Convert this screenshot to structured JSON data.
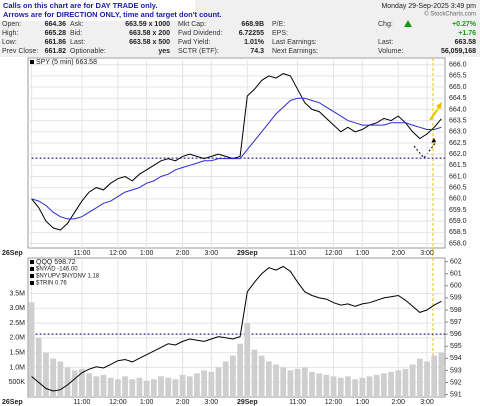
{
  "header": {
    "notice": [
      "Calls on this chart are for DAY TRADE only.",
      "Arrows are for DIRECTION ONLY, time and target don't count."
    ],
    "watermark": "© StockCharts.com",
    "quote": [
      [
        "Open:",
        "664.36",
        "Ask:",
        "663.59 x 1000",
        "Mkt Cap:",
        "668.9B",
        "P/E:"
      ],
      [
        "High:",
        "665.28",
        "Bid:",
        "663.58 x 200",
        "Fwd Dividend:",
        "6.72255",
        "EPS:"
      ],
      [
        "Low:",
        "661.86",
        "Last:",
        "663.58 x 500",
        "Fwd Yield:",
        "1.01%",
        "Last Earnings:"
      ],
      [
        "Prev Close:",
        "661.82",
        "Optionable:",
        "yes",
        "SCTR (ETF):",
        "74.3",
        "Next Earnings:"
      ]
    ],
    "date": "Monday 29-Sep-2025 3:49 pm",
    "chg_label": "Chg:",
    "chg_pct": "+0.27%",
    "chg": "+1.76",
    "last_label": "Last:",
    "last": "663.58",
    "volume_label": "Volume:",
    "volume": "56,059,168"
  },
  "chart_data": [
    {
      "type": "line",
      "categories": [
        "26Sep",
        null,
        null,
        null,
        null,
        null,
        null,
        "11:00",
        null,
        null,
        null,
        null,
        "12:00",
        null,
        null,
        null,
        "1:00",
        null,
        null,
        null,
        null,
        "2:00",
        null,
        null,
        null,
        "3:00",
        null,
        null,
        null,
        null,
        "29Sep",
        null,
        null,
        null,
        null,
        null,
        null,
        "11:00",
        null,
        null,
        null,
        null,
        "12:00",
        null,
        null,
        null,
        "1:00",
        null,
        null,
        null,
        null,
        "2:00",
        null,
        null,
        null,
        "3:00",
        null,
        null
      ],
      "series": [
        {
          "name": "SPY (5 min) 663.58",
          "color": "#000000",
          "values": [
            660.0,
            659.6,
            659.0,
            658.7,
            658.6,
            658.9,
            659.4,
            659.9,
            660.3,
            660.5,
            660.4,
            660.7,
            660.9,
            661.0,
            660.8,
            661.1,
            661.3,
            661.5,
            661.7,
            661.8,
            661.7,
            661.9,
            662.0,
            661.9,
            661.8,
            661.9,
            662.0,
            661.9,
            661.8,
            661.9,
            664.6,
            664.9,
            665.3,
            665.5,
            665.4,
            665.6,
            665.5,
            664.9,
            664.3,
            664.0,
            663.9,
            663.6,
            663.3,
            663.0,
            663.2,
            663.0,
            663.1,
            663.3,
            663.4,
            663.6,
            663.5,
            663.7,
            663.4,
            663.0,
            662.7,
            662.9,
            663.2,
            663.58
          ]
        },
        {
          "color": "#2b2bd0",
          "values": [
            660.0,
            659.9,
            659.7,
            659.4,
            659.2,
            659.1,
            659.1,
            659.2,
            659.4,
            659.6,
            659.8,
            659.9,
            660.1,
            660.3,
            660.4,
            660.5,
            660.7,
            660.8,
            661.0,
            661.1,
            661.3,
            661.4,
            661.5,
            661.6,
            661.7,
            661.7,
            661.8,
            661.8,
            661.8,
            661.8,
            662.2,
            662.6,
            663.0,
            663.4,
            663.8,
            664.1,
            664.4,
            664.5,
            664.5,
            664.4,
            664.3,
            664.1,
            663.9,
            663.7,
            663.5,
            663.4,
            663.3,
            663.3,
            663.3,
            663.3,
            663.4,
            663.4,
            663.4,
            663.3,
            663.2,
            663.1,
            663.1,
            663.2
          ]
        }
      ],
      "ylim": [
        657.8,
        666.3
      ],
      "yticks": [
        {
          "value": 658,
          "label": "658.0"
        },
        658.5,
        {
          "value": 659,
          "label": "659.0"
        },
        659.5,
        {
          "value": 660,
          "label": "660.0"
        },
        660.5,
        {
          "value": 661,
          "label": "661.0"
        },
        661.5,
        {
          "value": 662,
          "label": "662.0"
        },
        662.5,
        {
          "value": 663,
          "label": "663.0"
        },
        663.5,
        {
          "value": 664,
          "label": "664.0"
        },
        664.5,
        {
          "value": 665,
          "label": "665.0"
        },
        665.5,
        {
          "value": 666,
          "label": "666.0"
        }
      ],
      "ytick_side": "right",
      "grid": true,
      "hline": 661.82,
      "hline_color": "#00008b"
    },
    {
      "type": "line",
      "categories": [
        "26Sep",
        null,
        null,
        null,
        null,
        null,
        null,
        "11:00",
        null,
        null,
        null,
        null,
        "12:00",
        null,
        null,
        null,
        "1:00",
        null,
        null,
        null,
        null,
        "2:00",
        null,
        null,
        null,
        "3:00",
        null,
        null,
        null,
        null,
        "29Sep",
        null,
        null,
        null,
        null,
        null,
        null,
        "11:00",
        null,
        null,
        null,
        null,
        "12:00",
        null,
        null,
        null,
        "1:00",
        null,
        null,
        null,
        null,
        "2:00",
        null,
        null,
        null,
        "3:00",
        null,
        null
      ],
      "series": [
        {
          "type": "bar",
          "color": "#cfcfcf",
          "values": [
            3200000,
            2000000,
            1500000,
            1300000,
            1200000,
            1000000,
            900000,
            950000,
            800000,
            700000,
            750000,
            650000,
            600000,
            700000,
            600000,
            650000,
            550000,
            600000,
            700000,
            650000,
            600000,
            750000,
            700000,
            800000,
            900000,
            850000,
            1000000,
            1200000,
            1400000,
            1800000,
            2500000,
            1600000,
            1400000,
            1200000,
            1100000,
            1000000,
            900000,
            950000,
            1000000,
            850000,
            800000,
            750000,
            700000,
            650000,
            700000,
            600000,
            650000,
            700000,
            750000,
            800000,
            850000,
            900000,
            950000,
            1100000,
            1300000,
            1200000,
            1400000,
            1500000
          ]
        },
        {
          "name": "QQQ 598.72",
          "color": "#000000",
          "axis": "y2",
          "values": [
            592.5,
            592.0,
            591.5,
            591.3,
            591.4,
            591.8,
            592.3,
            592.8,
            593.1,
            593.3,
            593.2,
            593.5,
            593.8,
            593.9,
            593.7,
            594.0,
            594.3,
            594.6,
            594.9,
            595.2,
            595.1,
            595.4,
            595.6,
            595.5,
            595.4,
            595.6,
            595.8,
            595.7,
            595.6,
            595.8,
            599.5,
            600.3,
            601.0,
            601.5,
            601.3,
            601.6,
            601.2,
            600.3,
            599.5,
            599.2,
            599.0,
            598.9,
            598.6,
            598.4,
            598.5,
            598.3,
            598.5,
            598.6,
            598.8,
            599.0,
            599.1,
            599.2,
            598.8,
            598.3,
            597.8,
            598.0,
            598.4,
            598.72
          ]
        }
      ],
      "legend_extra": [
        "$NYAD -146.00",
        "$NYUPV:$NYDNV 1.18",
        "$TRIN 0.76"
      ],
      "ylim": [
        0,
        4700000
      ],
      "yticks": [
        {
          "value": 500000,
          "label": "500K"
        },
        {
          "value": 1000000,
          "label": "1.0M"
        },
        {
          "value": 1500000,
          "label": "1.5M"
        },
        {
          "value": 2000000,
          "label": "2.0M"
        },
        {
          "value": 2500000,
          "label": "2.5M"
        },
        {
          "value": 3000000,
          "label": "3.0M"
        },
        {
          "value": 3500000,
          "label": "3.5M"
        }
      ],
      "y2lim": [
        590.8,
        602.3
      ],
      "y2ticks": [
        591,
        592,
        593,
        594,
        595,
        596,
        597,
        598,
        599,
        600,
        601,
        602
      ],
      "ytick_side": "left",
      "grid": true,
      "hline": 596,
      "hline_color": "#00008b",
      "hline_axis": "y2"
    }
  ]
}
